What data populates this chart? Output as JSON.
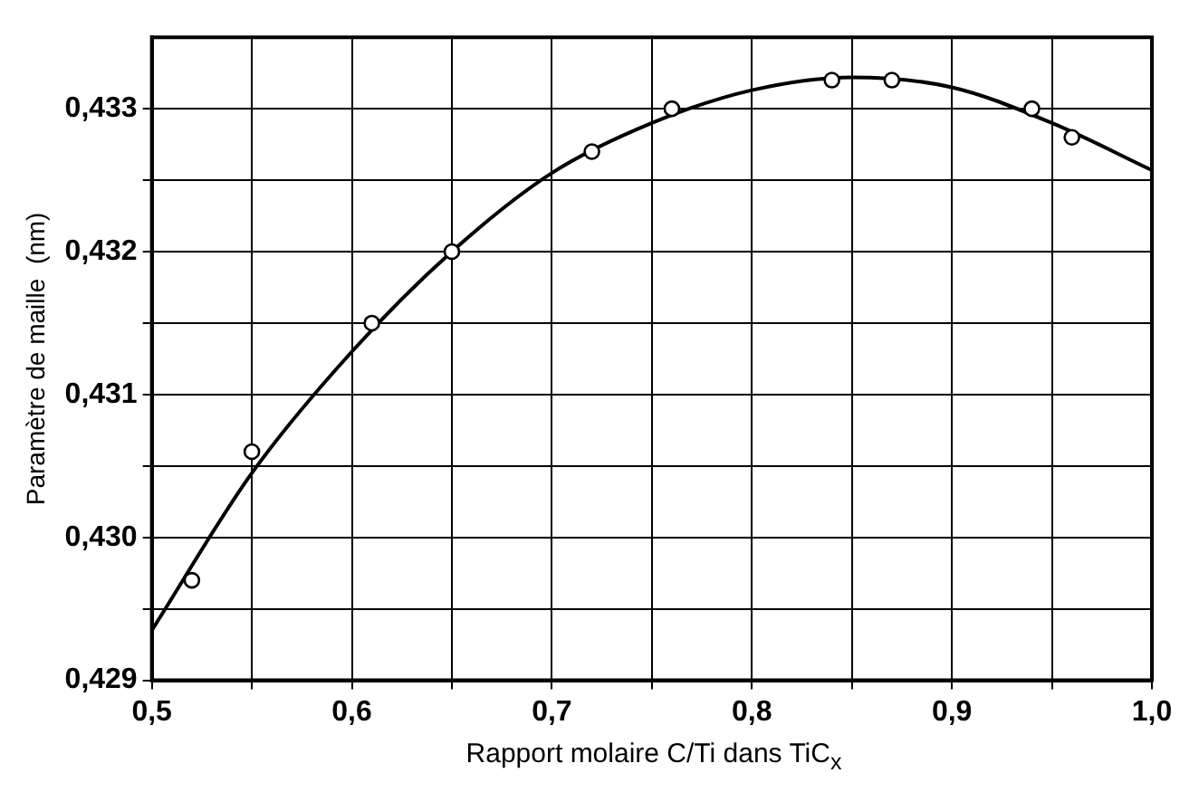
{
  "chart_data": {
    "type": "scatter",
    "xlabel": "Rapport molaire C/Ti dans TiC$_{x}$",
    "ylabel": "Paramètre de maille  (nm)",
    "xlim": [
      0.5,
      1.0
    ],
    "xticks": [
      {
        "value": 0.5,
        "label": "0,5"
      },
      {
        "value": 0.55,
        "label": null
      },
      {
        "value": 0.6,
        "label": "0,6"
      },
      {
        "value": 0.65,
        "label": null
      },
      {
        "value": 0.7,
        "label": "0,7"
      },
      {
        "value": 0.75,
        "label": null
      },
      {
        "value": 0.8,
        "label": "0,8"
      },
      {
        "value": 0.85,
        "label": null
      },
      {
        "value": 0.9,
        "label": "0,9"
      },
      {
        "value": 0.95,
        "label": null
      },
      {
        "value": 1.0,
        "label": "1,0"
      }
    ],
    "ylim": [
      0.429,
      0.4335
    ],
    "yticks": [
      {
        "value": 0.429,
        "label": "0,429"
      },
      {
        "value": 0.4295,
        "label": null
      },
      {
        "value": 0.43,
        "label": "0,430"
      },
      {
        "value": 0.4305,
        "label": null
      },
      {
        "value": 0.431,
        "label": "0,431"
      },
      {
        "value": 0.4315,
        "label": null
      },
      {
        "value": 0.432,
        "label": "0,432"
      },
      {
        "value": 0.4325,
        "label": null
      },
      {
        "value": 0.433,
        "label": "0,433"
      }
    ],
    "grid": true,
    "series": [
      {
        "type": "scatter",
        "marker": "circle",
        "color": "#000000",
        "x": [
          0.52,
          0.55,
          0.61,
          0.65,
          0.72,
          0.76,
          0.84,
          0.87,
          0.94,
          0.96
        ],
        "values": [
          0.4297,
          0.4306,
          0.4315,
          0.432,
          0.4327,
          0.433,
          0.4332,
          0.4332,
          0.433,
          0.4328
        ]
      },
      {
        "type": "line",
        "marker": "none",
        "line_style": "solid",
        "color": "#000000",
        "x": [
          0.5,
          0.55,
          0.6,
          0.65,
          0.7,
          0.75,
          0.8,
          0.85,
          0.9,
          0.95,
          1.0
        ],
        "values": [
          0.42935,
          0.43045,
          0.4313,
          0.432,
          0.43255,
          0.4329,
          0.43313,
          0.43322,
          0.43315,
          0.4329,
          0.43257
        ]
      }
    ]
  }
}
